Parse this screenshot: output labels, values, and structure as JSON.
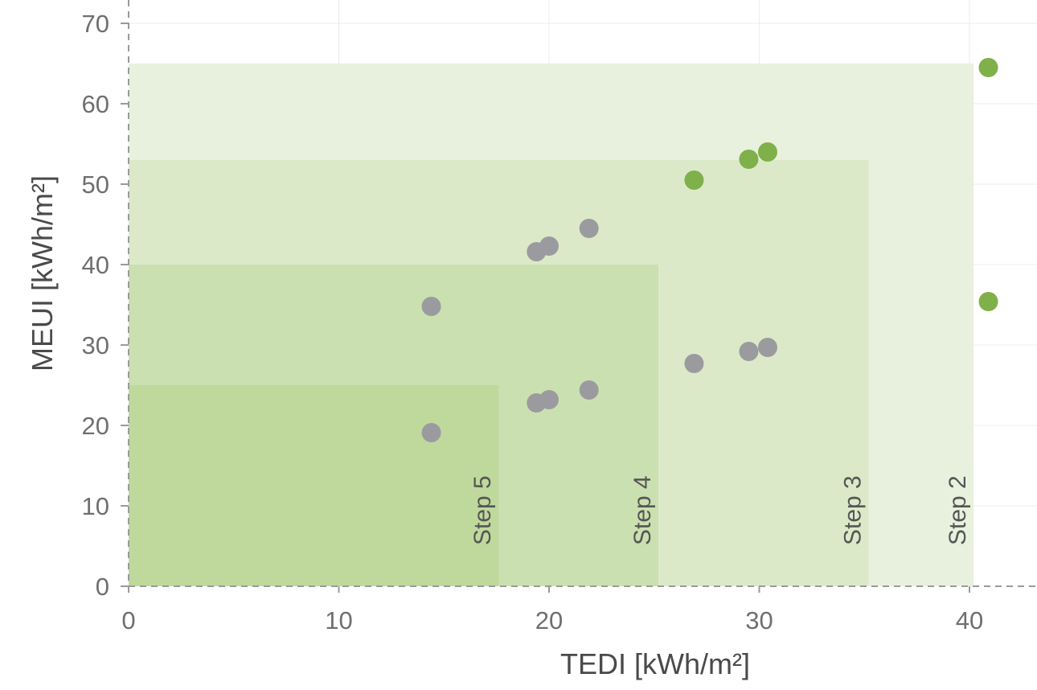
{
  "chart_data": {
    "type": "scatter",
    "xlabel": "TEDI [kWh/m²]",
    "ylabel": "MEUI [kWh/m²]",
    "xlim": [
      0,
      43
    ],
    "ylim": [
      0,
      70
    ],
    "x_ticks": [
      0,
      10,
      20,
      30,
      40
    ],
    "y_ticks": [
      0,
      10,
      20,
      30,
      40,
      50,
      60,
      70
    ],
    "grid": true,
    "zones": [
      {
        "label": "Step 2",
        "tedi_max": 40.2,
        "meui_max": 65,
        "color": "#e8f1dd"
      },
      {
        "label": "Step 3",
        "tedi_max": 35.2,
        "meui_max": 53,
        "color": "#dbe9c9"
      },
      {
        "label": "Step 4",
        "tedi_max": 25.2,
        "meui_max": 40,
        "color": "#cbe0b0"
      },
      {
        "label": "Step 5",
        "tedi_max": 17.6,
        "meui_max": 25,
        "color": "#bfd99c"
      }
    ],
    "series": [
      {
        "color": "#7fb04a",
        "points": [
          [
            26.9,
            50.5
          ],
          [
            29.5,
            53.1
          ],
          [
            30.4,
            54.0
          ],
          [
            40.9,
            64.5
          ],
          [
            40.9,
            35.4
          ]
        ]
      },
      {
        "color": "#9b9b9f",
        "points": [
          [
            14.4,
            34.8
          ],
          [
            14.4,
            19.1
          ],
          [
            19.4,
            41.6
          ],
          [
            20.0,
            42.3
          ],
          [
            21.9,
            44.5
          ],
          [
            19.4,
            22.8
          ],
          [
            20.0,
            23.2
          ],
          [
            21.9,
            24.4
          ],
          [
            26.9,
            27.7
          ],
          [
            29.5,
            29.2
          ],
          [
            30.4,
            29.7
          ]
        ]
      }
    ]
  }
}
